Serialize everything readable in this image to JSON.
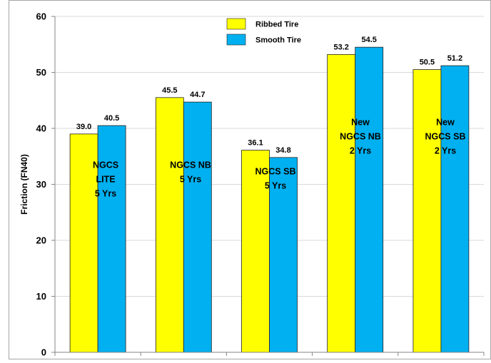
{
  "chart_data": {
    "type": "bar",
    "title": "",
    "xlabel": "",
    "ylabel": "Friction (FN40)",
    "ylim": [
      0,
      60
    ],
    "yticks": [
      0,
      10,
      20,
      30,
      40,
      50,
      60
    ],
    "grid": true,
    "legend_position": "top",
    "categories": [
      [
        "NGCS",
        "LITE",
        "5 Yrs"
      ],
      [
        "NGCS NB",
        "5 Yrs"
      ],
      [
        "NGCS SB",
        "5 Yrs"
      ],
      [
        "New",
        "NGCS NB",
        "2 Yrs"
      ],
      [
        "New",
        "NGCS SB",
        "2 Yrs"
      ]
    ],
    "series": [
      {
        "name": "Ribbed Tire",
        "color": "#FFFF00",
        "values": [
          39.0,
          45.5,
          36.1,
          53.2,
          50.5
        ],
        "labels": [
          "39.0",
          "45.5",
          "36.1",
          "53.2",
          "50.5"
        ]
      },
      {
        "name": "Smooth Tire",
        "color": "#00B0F0",
        "values": [
          40.5,
          44.7,
          34.8,
          54.5,
          51.2
        ],
        "labels": [
          "40.5",
          "44.7",
          "34.8",
          "54.5",
          "51.2"
        ]
      }
    ]
  }
}
